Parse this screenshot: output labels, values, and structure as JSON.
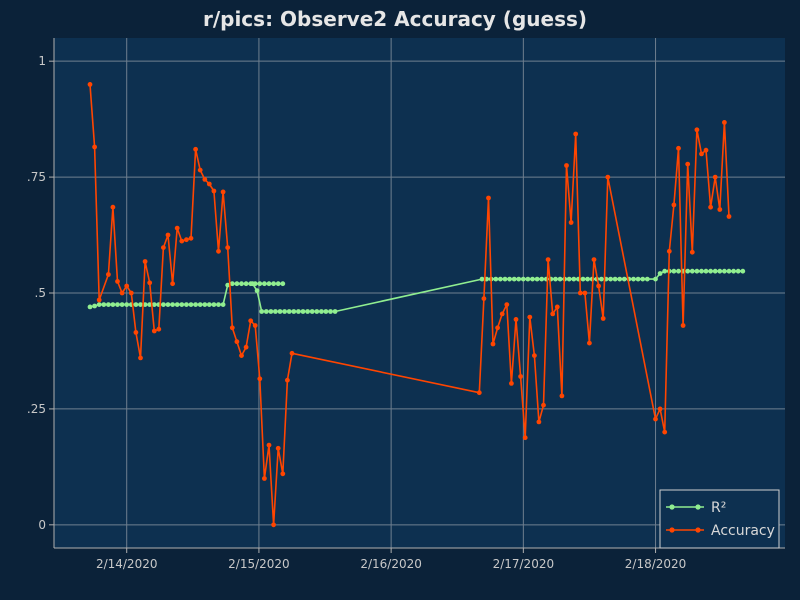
{
  "chart_data": {
    "type": "line",
    "title": "r/pics: Observe2 Accuracy (guess)",
    "xlabel": "",
    "ylabel": "",
    "x_type": "date",
    "xlim": [
      "2020-02-13T10:48:00",
      "2020-02-18T23:30:00"
    ],
    "ylim": [
      -0.05,
      1.05
    ],
    "x_ticks": [
      {
        "value": "2020-02-14T00:00:00",
        "label": "2/14/2020"
      },
      {
        "value": "2020-02-15T00:00:00",
        "label": "2/15/2020"
      },
      {
        "value": "2020-02-16T00:00:00",
        "label": "2/16/2020"
      },
      {
        "value": "2020-02-17T00:00:00",
        "label": "2/17/2020"
      },
      {
        "value": "2020-02-18T00:00:00",
        "label": "2/18/2020"
      }
    ],
    "y_ticks": [
      {
        "value": 0,
        "label": "0"
      },
      {
        "value": 0.25,
        "label": ".25"
      },
      {
        "value": 0.5,
        "label": ".5"
      },
      {
        "value": 0.75,
        "label": ".75"
      },
      {
        "value": 1,
        "label": "1"
      }
    ],
    "grid": true,
    "legend_position": "bottom-right",
    "colors": {
      "background": "#0b2239",
      "plot_background": "#0d3050",
      "grid": "#6f7f8f",
      "axis": "#b0b0b0"
    },
    "series": [
      {
        "name": "R²",
        "color": "#90ee90",
        "points": [
          [
            "2020-02-13T17:20:00",
            0.47
          ],
          [
            "2020-02-13T18:10:00",
            0.472
          ],
          [
            "2020-02-13T19:00:00",
            0.475
          ],
          [
            "2020-02-13T19:50:00",
            0.475
          ],
          [
            "2020-02-13T20:40:00",
            0.475
          ],
          [
            "2020-02-13T21:30:00",
            0.475
          ],
          [
            "2020-02-13T22:20:00",
            0.475
          ],
          [
            "2020-02-13T23:10:00",
            0.475
          ],
          [
            "2020-02-14T00:00:00",
            0.475
          ],
          [
            "2020-02-14T00:50:00",
            0.475
          ],
          [
            "2020-02-14T01:40:00",
            0.475
          ],
          [
            "2020-02-14T02:30:00",
            0.475
          ],
          [
            "2020-02-14T03:20:00",
            0.475
          ],
          [
            "2020-02-14T04:10:00",
            0.475
          ],
          [
            "2020-02-14T05:00:00",
            0.475
          ],
          [
            "2020-02-14T05:50:00",
            0.475
          ],
          [
            "2020-02-14T06:40:00",
            0.475
          ],
          [
            "2020-02-14T07:30:00",
            0.475
          ],
          [
            "2020-02-14T08:20:00",
            0.475
          ],
          [
            "2020-02-14T09:10:00",
            0.475
          ],
          [
            "2020-02-14T10:00:00",
            0.475
          ],
          [
            "2020-02-14T10:50:00",
            0.475
          ],
          [
            "2020-02-14T11:40:00",
            0.475
          ],
          [
            "2020-02-14T12:30:00",
            0.475
          ],
          [
            "2020-02-14T13:20:00",
            0.475
          ],
          [
            "2020-02-14T14:10:00",
            0.475
          ],
          [
            "2020-02-14T15:00:00",
            0.475
          ],
          [
            "2020-02-14T15:50:00",
            0.475
          ],
          [
            "2020-02-14T16:40:00",
            0.475
          ],
          [
            "2020-02-14T17:30:00",
            0.475
          ],
          [
            "2020-02-14T18:20:00",
            0.517
          ],
          [
            "2020-02-14T19:10:00",
            0.52
          ],
          [
            "2020-02-14T20:00:00",
            0.52
          ],
          [
            "2020-02-14T20:50:00",
            0.52
          ],
          [
            "2020-02-14T21:40:00",
            0.52
          ],
          [
            "2020-02-14T22:30:00",
            0.52
          ],
          [
            "2020-02-14T23:20:00",
            0.52
          ],
          [
            "2020-02-15T00:10:00",
            0.52
          ],
          [
            "2020-02-15T01:00:00",
            0.52
          ],
          [
            "2020-02-15T01:50:00",
            0.52
          ],
          [
            "2020-02-15T02:40:00",
            0.52
          ],
          [
            "2020-02-15T03:30:00",
            0.52
          ],
          [
            "2020-02-15T04:20:00",
            0.52
          ],
          [
            "2020-02-14T22:50:00",
            0.52
          ],
          [
            "2020-02-14T23:40:00",
            0.505
          ],
          [
            "2020-02-15T00:30:00",
            0.46
          ],
          [
            "2020-02-15T01:20:00",
            0.46
          ],
          [
            "2020-02-15T02:10:00",
            0.46
          ],
          [
            "2020-02-15T03:00:00",
            0.46
          ],
          [
            "2020-02-15T03:50:00",
            0.46
          ],
          [
            "2020-02-15T04:40:00",
            0.46
          ],
          [
            "2020-02-15T05:30:00",
            0.46
          ],
          [
            "2020-02-15T06:20:00",
            0.46
          ],
          [
            "2020-02-15T07:10:00",
            0.46
          ],
          [
            "2020-02-15T08:00:00",
            0.46
          ],
          [
            "2020-02-15T08:50:00",
            0.46
          ],
          [
            "2020-02-15T09:40:00",
            0.46
          ],
          [
            "2020-02-15T10:30:00",
            0.46
          ],
          [
            "2020-02-15T11:20:00",
            0.46
          ],
          [
            "2020-02-15T12:10:00",
            0.46
          ],
          [
            "2020-02-15T13:00:00",
            0.46
          ],
          [
            "2020-02-15T13:50:00",
            0.46
          ],
          [
            "2020-02-16T16:30:00",
            0.53
          ],
          [
            "2020-02-16T17:20:00",
            0.53
          ],
          [
            "2020-02-16T18:10:00",
            0.53
          ],
          [
            "2020-02-16T19:00:00",
            0.53
          ],
          [
            "2020-02-16T19:50:00",
            0.53
          ],
          [
            "2020-02-16T20:40:00",
            0.53
          ],
          [
            "2020-02-16T21:30:00",
            0.53
          ],
          [
            "2020-02-16T22:20:00",
            0.53
          ],
          [
            "2020-02-16T23:10:00",
            0.53
          ],
          [
            "2020-02-17T00:00:00",
            0.53
          ],
          [
            "2020-02-17T00:50:00",
            0.53
          ],
          [
            "2020-02-17T01:40:00",
            0.53
          ],
          [
            "2020-02-17T02:30:00",
            0.53
          ],
          [
            "2020-02-17T03:20:00",
            0.53
          ],
          [
            "2020-02-17T04:10:00",
            0.53
          ],
          [
            "2020-02-17T05:00:00",
            0.53
          ],
          [
            "2020-02-17T05:50:00",
            0.53
          ],
          [
            "2020-02-17T06:40:00",
            0.53
          ],
          [
            "2020-02-17T07:30:00",
            0.53
          ],
          [
            "2020-02-17T08:20:00",
            0.53
          ],
          [
            "2020-02-17T09:10:00",
            0.53
          ],
          [
            "2020-02-17T10:00:00",
            0.53
          ],
          [
            "2020-02-17T10:50:00",
            0.53
          ],
          [
            "2020-02-17T11:40:00",
            0.53
          ],
          [
            "2020-02-17T12:30:00",
            0.53
          ],
          [
            "2020-02-17T13:20:00",
            0.53
          ],
          [
            "2020-02-17T14:10:00",
            0.53
          ],
          [
            "2020-02-17T15:00:00",
            0.53
          ],
          [
            "2020-02-17T15:50:00",
            0.53
          ],
          [
            "2020-02-17T16:40:00",
            0.53
          ],
          [
            "2020-02-17T17:30:00",
            0.53
          ],
          [
            "2020-02-17T18:20:00",
            0.53
          ],
          [
            "2020-02-17T19:10:00",
            0.53
          ],
          [
            "2020-02-17T20:00:00",
            0.53
          ],
          [
            "2020-02-17T20:50:00",
            0.53
          ],
          [
            "2020-02-17T21:40:00",
            0.53
          ],
          [
            "2020-02-17T22:30:00",
            0.53
          ],
          [
            "2020-02-18T00:00:00",
            0.53
          ],
          [
            "2020-02-18T00:50:00",
            0.542
          ],
          [
            "2020-02-18T01:40:00",
            0.547
          ],
          [
            "2020-02-18T02:30:00",
            0.547
          ],
          [
            "2020-02-18T03:20:00",
            0.547
          ],
          [
            "2020-02-18T04:10:00",
            0.547
          ],
          [
            "2020-02-18T05:00:00",
            0.547
          ],
          [
            "2020-02-18T05:50:00",
            0.547
          ],
          [
            "2020-02-18T06:40:00",
            0.547
          ],
          [
            "2020-02-18T07:30:00",
            0.547
          ],
          [
            "2020-02-18T08:20:00",
            0.547
          ],
          [
            "2020-02-18T09:10:00",
            0.547
          ],
          [
            "2020-02-18T10:00:00",
            0.547
          ],
          [
            "2020-02-18T10:50:00",
            0.547
          ],
          [
            "2020-02-18T11:40:00",
            0.547
          ],
          [
            "2020-02-18T12:30:00",
            0.547
          ],
          [
            "2020-02-18T13:20:00",
            0.547
          ],
          [
            "2020-02-18T14:10:00",
            0.547
          ],
          [
            "2020-02-18T15:00:00",
            0.547
          ],
          [
            "2020-02-18T15:50:00",
            0.547
          ]
        ]
      },
      {
        "name": "Accuracy",
        "color": "#ff4500",
        "points": [
          [
            "2020-02-13T17:20:00",
            0.95
          ],
          [
            "2020-02-13T18:10:00",
            0.815
          ],
          [
            "2020-02-13T19:00:00",
            0.485
          ],
          [
            "2020-02-13T20:40:00",
            0.54
          ],
          [
            "2020-02-13T21:30:00",
            0.685
          ],
          [
            "2020-02-13T22:20:00",
            0.525
          ],
          [
            "2020-02-13T23:10:00",
            0.5
          ],
          [
            "2020-02-14T00:00:00",
            0.515
          ],
          [
            "2020-02-14T00:50:00",
            0.5
          ],
          [
            "2020-02-14T01:40:00",
            0.415
          ],
          [
            "2020-02-14T02:30:00",
            0.36
          ],
          [
            "2020-02-14T03:20:00",
            0.568
          ],
          [
            "2020-02-14T04:10:00",
            0.522
          ],
          [
            "2020-02-14T05:00:00",
            0.418
          ],
          [
            "2020-02-14T05:50:00",
            0.422
          ],
          [
            "2020-02-14T06:40:00",
            0.598
          ],
          [
            "2020-02-14T07:30:00",
            0.625
          ],
          [
            "2020-02-14T08:20:00",
            0.52
          ],
          [
            "2020-02-14T09:10:00",
            0.64
          ],
          [
            "2020-02-14T10:00:00",
            0.612
          ],
          [
            "2020-02-14T10:50:00",
            0.615
          ],
          [
            "2020-02-14T11:40:00",
            0.618
          ],
          [
            "2020-02-14T12:30:00",
            0.81
          ],
          [
            "2020-02-14T13:20:00",
            0.765
          ],
          [
            "2020-02-14T14:10:00",
            0.745
          ],
          [
            "2020-02-14T15:00:00",
            0.735
          ],
          [
            "2020-02-14T15:50:00",
            0.72
          ],
          [
            "2020-02-14T16:40:00",
            0.59
          ],
          [
            "2020-02-14T17:30:00",
            0.718
          ],
          [
            "2020-02-14T18:20:00",
            0.598
          ],
          [
            "2020-02-14T19:10:00",
            0.425
          ],
          [
            "2020-02-14T20:00:00",
            0.395
          ],
          [
            "2020-02-14T20:50:00",
            0.365
          ],
          [
            "2020-02-14T21:40:00",
            0.383
          ],
          [
            "2020-02-14T22:30:00",
            0.44
          ],
          [
            "2020-02-14T23:20:00",
            0.43
          ],
          [
            "2020-02-15T00:10:00",
            0.315
          ],
          [
            "2020-02-15T01:00:00",
            0.1
          ],
          [
            "2020-02-15T01:50:00",
            0.172
          ],
          [
            "2020-02-15T02:40:00",
            0.0
          ],
          [
            "2020-02-15T03:30:00",
            0.165
          ],
          [
            "2020-02-15T04:20:00",
            0.11
          ],
          [
            "2020-02-15T05:10:00",
            0.312
          ],
          [
            "2020-02-15T06:00:00",
            0.37
          ],
          [
            "2020-02-16T16:00:00",
            0.285
          ],
          [
            "2020-02-16T16:50:00",
            0.488
          ],
          [
            "2020-02-16T17:40:00",
            0.705
          ],
          [
            "2020-02-16T18:30:00",
            0.39
          ],
          [
            "2020-02-16T19:20:00",
            0.425
          ],
          [
            "2020-02-16T20:10:00",
            0.455
          ],
          [
            "2020-02-16T21:00:00",
            0.475
          ],
          [
            "2020-02-16T21:50:00",
            0.305
          ],
          [
            "2020-02-16T22:40:00",
            0.443
          ],
          [
            "2020-02-16T23:30:00",
            0.32
          ],
          [
            "2020-02-17T00:20:00",
            0.188
          ],
          [
            "2020-02-17T01:10:00",
            0.448
          ],
          [
            "2020-02-17T02:00:00",
            0.365
          ],
          [
            "2020-02-17T02:50:00",
            0.222
          ],
          [
            "2020-02-17T03:40:00",
            0.258
          ],
          [
            "2020-02-17T04:30:00",
            0.572
          ],
          [
            "2020-02-17T05:20:00",
            0.455
          ],
          [
            "2020-02-17T06:10:00",
            0.47
          ],
          [
            "2020-02-17T07:00:00",
            0.278
          ],
          [
            "2020-02-17T07:50:00",
            0.775
          ],
          [
            "2020-02-17T08:40:00",
            0.652
          ],
          [
            "2020-02-17T09:30:00",
            0.843
          ],
          [
            "2020-02-17T10:20:00",
            0.5
          ],
          [
            "2020-02-17T11:10:00",
            0.5
          ],
          [
            "2020-02-17T12:00:00",
            0.392
          ],
          [
            "2020-02-17T12:50:00",
            0.572
          ],
          [
            "2020-02-17T13:40:00",
            0.515
          ],
          [
            "2020-02-17T14:30:00",
            0.445
          ],
          [
            "2020-02-17T15:20:00",
            0.75
          ],
          [
            "2020-02-18T00:00:00",
            0.228
          ],
          [
            "2020-02-18T00:50:00",
            0.25
          ],
          [
            "2020-02-18T01:40:00",
            0.2
          ],
          [
            "2020-02-18T02:30:00",
            0.59
          ],
          [
            "2020-02-18T03:20:00",
            0.69
          ],
          [
            "2020-02-18T04:10:00",
            0.812
          ],
          [
            "2020-02-18T05:00:00",
            0.43
          ],
          [
            "2020-02-18T05:50:00",
            0.778
          ],
          [
            "2020-02-18T06:40:00",
            0.588
          ],
          [
            "2020-02-18T07:30:00",
            0.852
          ],
          [
            "2020-02-18T08:20:00",
            0.8
          ],
          [
            "2020-02-18T09:10:00",
            0.808
          ],
          [
            "2020-02-18T10:00:00",
            0.685
          ],
          [
            "2020-02-18T10:50:00",
            0.75
          ],
          [
            "2020-02-18T11:40:00",
            0.68
          ],
          [
            "2020-02-18T12:30:00",
            0.868
          ],
          [
            "2020-02-18T13:20:00",
            0.665
          ]
        ]
      }
    ]
  }
}
